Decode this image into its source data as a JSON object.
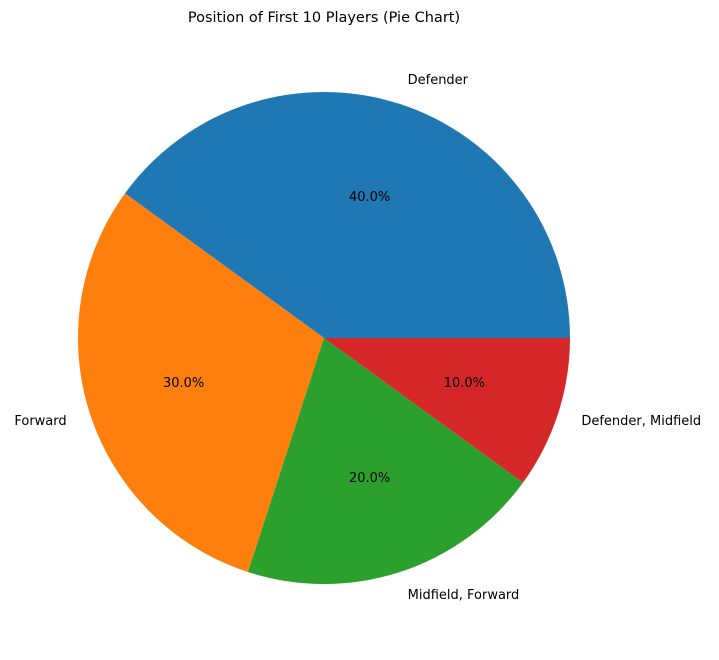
{
  "chart_data": {
    "type": "pie",
    "title": "Position of First 10 Players (Pie Chart)",
    "categories": [
      "Defender",
      "Forward",
      "Midfield, Forward",
      "Defender, Midfield"
    ],
    "values": [
      40.0,
      30.0,
      20.0,
      10.0
    ],
    "percent_labels": [
      "40.0%",
      "30.0%",
      "20.0%",
      "10.0%"
    ],
    "colors": [
      "#1f77b4",
      "#ff7f0e",
      "#2ca02c",
      "#d62728"
    ],
    "start_angle_deg": 0,
    "direction": "counterclockwise"
  }
}
